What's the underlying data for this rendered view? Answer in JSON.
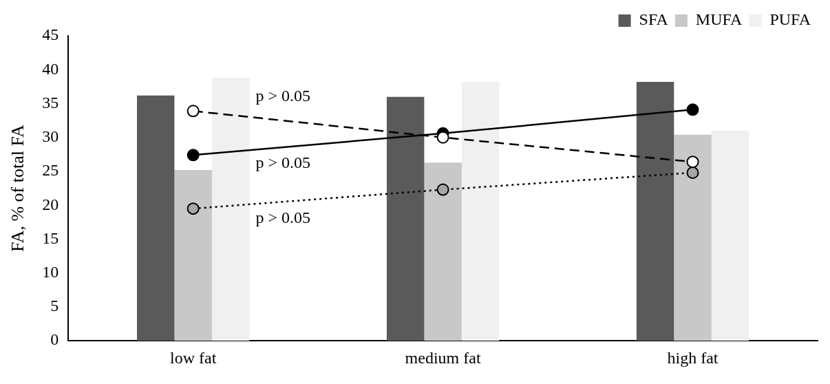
{
  "chart_data": {
    "type": "bar",
    "ylabel": "FA, % of total FA",
    "categories": [
      "low fat",
      "medium fat",
      "high fat"
    ],
    "series": [
      {
        "name": "SFA",
        "color": "#5a5a5a",
        "values": [
          36.2,
          36.0,
          38.2
        ]
      },
      {
        "name": "MUFA",
        "color": "#c8c8c8",
        "values": [
          25.2,
          26.3,
          30.4
        ]
      },
      {
        "name": "PUFA",
        "color": "#f0f0f0",
        "values": [
          38.8,
          38.2,
          31.0
        ]
      },
      {
        "type": "line",
        "color": "#000000",
        "values": [
          27.4,
          30.6,
          34.1
        ],
        "marker": "circle",
        "line_style": "solid"
      },
      {
        "type": "line",
        "color": "#ffffff",
        "values": [
          33.9,
          30.0,
          26.4
        ],
        "marker": "circle",
        "line_style": "dashed"
      },
      {
        "type": "line",
        "color": "#a6a6a6",
        "values": [
          19.5,
          22.3,
          24.8
        ],
        "marker": "circle",
        "line_style": "dotted"
      }
    ],
    "ylim": [
      0,
      45
    ],
    "yticks": [
      0,
      5,
      10,
      15,
      20,
      25,
      30,
      35,
      40,
      45
    ],
    "grid": false,
    "legend": "top right",
    "annotations": [
      "p > 0.05",
      "p > 0.05",
      "p > 0.05"
    ]
  }
}
